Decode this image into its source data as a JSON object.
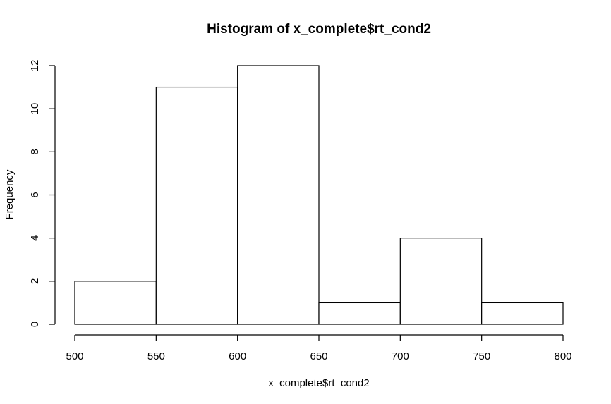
{
  "chart_data": {
    "type": "bar",
    "subtype": "histogram",
    "title": "Histogram of x_complete$rt_cond2",
    "xlabel": "x_complete$rt_cond2",
    "ylabel": "Frequency",
    "bins": [
      {
        "start": 500,
        "end": 550,
        "count": 2
      },
      {
        "start": 550,
        "end": 600,
        "count": 11
      },
      {
        "start": 600,
        "end": 650,
        "count": 12
      },
      {
        "start": 650,
        "end": 700,
        "count": 1
      },
      {
        "start": 700,
        "end": 750,
        "count": 4
      },
      {
        "start": 750,
        "end": 800,
        "count": 1
      }
    ],
    "x_ticks": [
      500,
      550,
      600,
      650,
      700,
      750,
      800
    ],
    "y_ticks": [
      0,
      2,
      4,
      6,
      8,
      10,
      12
    ],
    "xlim": [
      500,
      800
    ],
    "ylim": [
      0,
      12
    ],
    "grid": false,
    "bar_fill": "#ffffff",
    "bar_stroke": "#000000"
  }
}
